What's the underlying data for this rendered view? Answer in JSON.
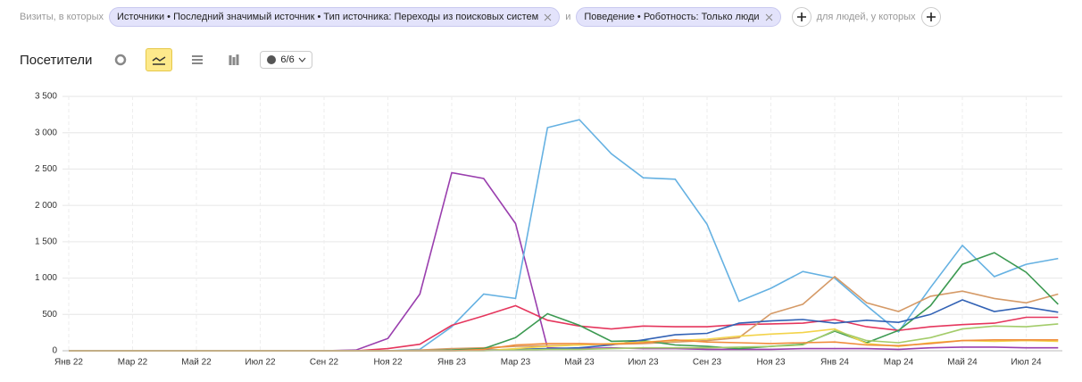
{
  "filters": {
    "lead": "Визиты, в которых",
    "chips": [
      "Источники • Последний значимый источник • Тип источника: Переходы из поисковых систем",
      "Поведение • Роботность: Только люди"
    ],
    "joiner": "и",
    "people": "для людей, у которых"
  },
  "toolbar": {
    "title": "Посетители",
    "counter": "6/6"
  },
  "chart_data": {
    "type": "line",
    "categories": [
      "Янв 22",
      null,
      "Мар 22",
      null,
      "Май 22",
      null,
      "Июл 22",
      null,
      "Сен 22",
      null,
      "Ноя 22",
      null,
      "Янв 23",
      null,
      "Мар 23",
      null,
      "Май 23",
      null,
      "Июл 23",
      null,
      "Сен 23",
      null,
      "Ноя 23",
      null,
      "Янв 24",
      null,
      "Мар 24",
      null,
      "Май 24",
      null,
      "Июл 24",
      null
    ],
    "ylim": [
      0,
      3500
    ],
    "yticks": [
      0,
      500,
      {
        "value": 1000,
        "label": "1 000"
      },
      {
        "value": 1500,
        "label": "1 500"
      },
      {
        "value": 2000,
        "label": "2 000"
      },
      {
        "value": 2500,
        "label": "2 500"
      },
      {
        "value": 3000,
        "label": "3 000"
      },
      {
        "value": 3500,
        "label": "3 500"
      }
    ],
    "grid": true,
    "series": [
      {
        "color": "#9a3fae",
        "values": [
          0,
          0,
          0,
          0,
          0,
          0,
          0,
          0,
          0,
          10,
          170,
          780,
          2450,
          2370,
          1750,
          40,
          30,
          40,
          30,
          30,
          20,
          20,
          20,
          30,
          30,
          30,
          20,
          40,
          50,
          50,
          40,
          40
        ]
      },
      {
        "color": "#65b1e2",
        "values": [
          0,
          0,
          0,
          0,
          0,
          0,
          0,
          0,
          0,
          0,
          0,
          20,
          330,
          780,
          720,
          3070,
          3180,
          2710,
          2380,
          2360,
          1740,
          680,
          860,
          1090,
          1000,
          620,
          260,
          870,
          1450,
          1020,
          1190,
          1270
        ]
      },
      {
        "color": "#e5365d",
        "values": [
          0,
          0,
          0,
          0,
          0,
          0,
          0,
          0,
          0,
          0,
          30,
          90,
          350,
          480,
          620,
          420,
          340,
          300,
          340,
          330,
          330,
          360,
          370,
          380,
          430,
          330,
          280,
          330,
          360,
          380,
          460,
          460
        ]
      },
      {
        "color": "#d59a67",
        "values": [
          0,
          0,
          0,
          0,
          0,
          0,
          0,
          0,
          0,
          0,
          0,
          10,
          30,
          40,
          60,
          70,
          80,
          90,
          100,
          120,
          140,
          180,
          510,
          640,
          1020,
          660,
          540,
          750,
          820,
          720,
          660,
          780
        ]
      },
      {
        "color": "#3d9a52",
        "values": [
          0,
          0,
          0,
          0,
          0,
          0,
          0,
          0,
          0,
          0,
          0,
          0,
          10,
          30,
          180,
          510,
          350,
          130,
          140,
          80,
          60,
          30,
          60,
          90,
          270,
          110,
          280,
          620,
          1190,
          1350,
          1080,
          640
        ]
      },
      {
        "color": "#3262b5",
        "values": [
          0,
          0,
          0,
          0,
          0,
          0,
          0,
          0,
          0,
          0,
          0,
          0,
          0,
          10,
          20,
          30,
          40,
          80,
          150,
          220,
          240,
          380,
          410,
          430,
          380,
          420,
          390,
          500,
          700,
          540,
          600,
          530
        ]
      },
      {
        "color": "#f3d34a",
        "values": [
          0,
          0,
          0,
          0,
          0,
          0,
          0,
          0,
          0,
          0,
          0,
          0,
          0,
          0,
          30,
          60,
          80,
          100,
          120,
          140,
          160,
          200,
          230,
          250,
          300,
          100,
          60,
          110,
          140,
          130,
          140,
          130
        ]
      },
      {
        "color": "#a3cc6a",
        "values": [
          0,
          0,
          0,
          0,
          0,
          0,
          0,
          0,
          0,
          0,
          0,
          0,
          0,
          0,
          10,
          20,
          20,
          30,
          40,
          40,
          40,
          50,
          60,
          80,
          280,
          140,
          110,
          180,
          300,
          340,
          330,
          370
        ]
      },
      {
        "color": "#f08c3a",
        "values": [
          0,
          0,
          0,
          0,
          0,
          0,
          0,
          0,
          0,
          0,
          0,
          0,
          0,
          20,
          80,
          100,
          100,
          90,
          110,
          150,
          120,
          110,
          100,
          110,
          120,
          80,
          70,
          100,
          140,
          150,
          150,
          150
        ]
      }
    ]
  }
}
